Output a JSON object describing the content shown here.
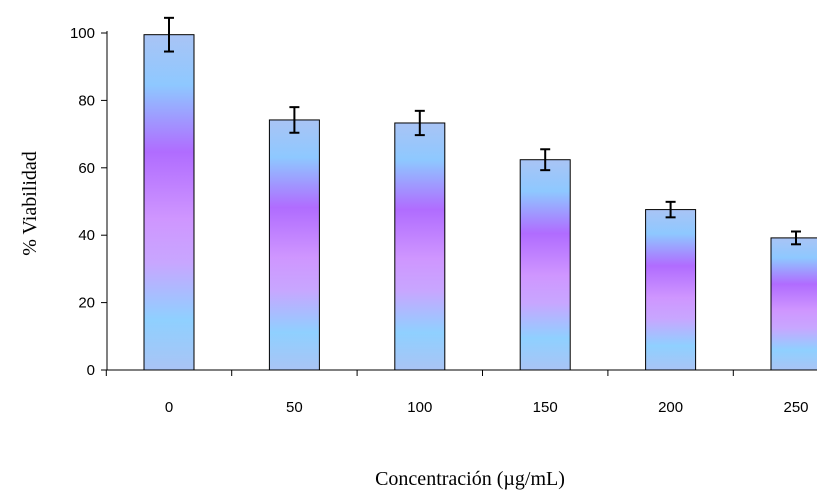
{
  "chart_data": {
    "type": "bar",
    "title": "",
    "xlabel": "Concentración (µg/mL)",
    "ylabel": "% Viabilidad",
    "categories": [
      "0",
      "50",
      "100",
      "150",
      "200",
      "250"
    ],
    "values": [
      99.5,
      74.2,
      73.3,
      62.4,
      47.6,
      39.2
    ],
    "error": [
      5.0,
      3.8,
      3.6,
      3.1,
      2.3,
      1.9
    ],
    "ylim": [
      0,
      100
    ],
    "yticks": [
      0,
      20,
      40,
      60,
      80,
      100
    ],
    "grid": false,
    "legend": "none",
    "colors": {
      "gradient": [
        "#a9c4f5",
        "#8ec8ff",
        "#b06cff",
        "#cf96ff",
        "#c8a6ff",
        "#8fd0ff",
        "#a9c4f5"
      ],
      "axis": "#000000",
      "errorbar": "#000000"
    }
  }
}
